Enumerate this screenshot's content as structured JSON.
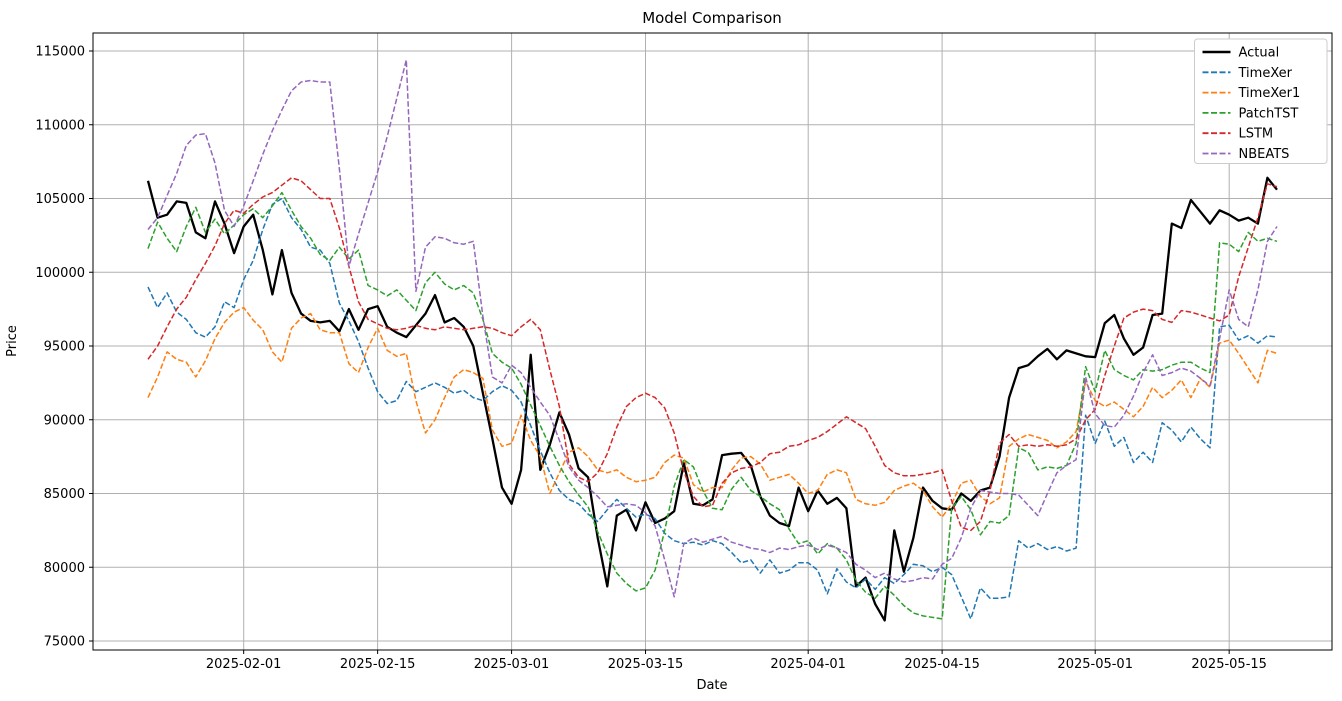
{
  "figure": {
    "title": "Model Comparison",
    "xlabel": "Date",
    "ylabel": "Price"
  },
  "chart_data": {
    "type": "line",
    "title": "Model Comparison",
    "xlabel": "Date",
    "ylabel": "Price",
    "grid": true,
    "legend_position": "upper right",
    "x_start_date": "2025-01-22",
    "x_step": "1 day",
    "x_end_date": "2025-05-20",
    "n_points": 119,
    "ylim": [
      74363,
      116221
    ],
    "xlim_days": [
      -5.75,
      123.75
    ],
    "y_ticks": [
      75000,
      80000,
      85000,
      90000,
      95000,
      100000,
      105000,
      110000,
      115000
    ],
    "x_ticks": [
      {
        "day": 10,
        "label": "2025-02-01"
      },
      {
        "day": 24,
        "label": "2025-02-15"
      },
      {
        "day": 38,
        "label": "2025-03-01"
      },
      {
        "day": 52,
        "label": "2025-03-15"
      },
      {
        "day": 69,
        "label": "2025-04-01"
      },
      {
        "day": 83,
        "label": "2025-04-15"
      },
      {
        "day": 99,
        "label": "2025-05-01"
      },
      {
        "day": 113,
        "label": "2025-05-15"
      }
    ],
    "series": [
      {
        "name": "Actual",
        "color": "#000000",
        "style": "solid",
        "width": 2.3,
        "values": [
          106200,
          103700,
          103900,
          104800,
          104700,
          102700,
          102300,
          104800,
          103300,
          101300,
          103100,
          103900,
          101500,
          98500,
          101500,
          98600,
          97200,
          96700,
          96600,
          96700,
          96000,
          97500,
          96100,
          97500,
          97700,
          96300,
          95900,
          95600,
          96400,
          97200,
          98450,
          96600,
          96900,
          96300,
          95000,
          91800,
          88700,
          85400,
          84300,
          86600,
          94400,
          86600,
          88300,
          90500,
          89000,
          86700,
          86100,
          82000,
          78700,
          83500,
          83900,
          82500,
          84400,
          83000,
          83300,
          83800,
          87050,
          84300,
          84200,
          84600,
          87600,
          87700,
          87750,
          86900,
          84800,
          83500,
          83000,
          82800,
          85400,
          83800,
          85200,
          84300,
          84700,
          84000,
          78700,
          79300,
          77500,
          76400,
          82500,
          79700,
          82000,
          85400,
          84500,
          84000,
          83900,
          85000,
          84500,
          85200,
          85400,
          87500,
          91500,
          93500,
          93700,
          94300,
          94800,
          94100,
          94700,
          94500,
          94300,
          94250,
          96550,
          97100,
          95500,
          94400,
          94900,
          97100,
          97200,
          103300,
          103000,
          104900,
          104100,
          103300,
          104200,
          103900,
          103500,
          103700,
          103300,
          106400,
          105600
        ]
      },
      {
        "name": "TimeXer",
        "color": "#1f77b4",
        "style": "dashed",
        "width": 1.5,
        "values": [
          99000,
          97600,
          98600,
          97300,
          96800,
          95900,
          95600,
          96300,
          98000,
          97600,
          99500,
          100800,
          102900,
          104600,
          105000,
          103700,
          102900,
          101700,
          101500,
          100600,
          97900,
          96700,
          95300,
          93500,
          91900,
          91100,
          91300,
          92600,
          91900,
          92200,
          92500,
          92200,
          91800,
          92000,
          91500,
          91300,
          91900,
          92300,
          92000,
          91200,
          89600,
          87900,
          86400,
          85200,
          84600,
          84300,
          83600,
          83100,
          83900,
          84600,
          84000,
          83400,
          83600,
          83300,
          82300,
          81800,
          81600,
          81700,
          81500,
          81800,
          81600,
          81000,
          80300,
          80500,
          79600,
          80500,
          79600,
          79800,
          80300,
          80300,
          79800,
          78200,
          79900,
          79000,
          78600,
          79200,
          78500,
          79300,
          78900,
          79500,
          80200,
          80100,
          79700,
          80000,
          79500,
          78000,
          76500,
          78600,
          77900,
          77900,
          78000,
          81800,
          81300,
          81600,
          81200,
          81400,
          81100,
          81300,
          90300,
          88400,
          89900,
          88200,
          88800,
          87100,
          87800,
          87100,
          89800,
          89300,
          88500,
          89500,
          88700,
          88100,
          96300,
          96400,
          95400,
          95700,
          95200,
          95700,
          95600
        ]
      },
      {
        "name": "TimeXer1",
        "color": "#ff7f0e",
        "style": "dashed",
        "width": 1.5,
        "values": [
          91500,
          92900,
          94600,
          94100,
          93900,
          92900,
          94000,
          95500,
          96600,
          97300,
          97600,
          96750,
          96100,
          94600,
          93900,
          96200,
          96900,
          97200,
          96100,
          95900,
          95900,
          93800,
          93200,
          94900,
          96200,
          94700,
          94300,
          94500,
          91300,
          89100,
          90000,
          91500,
          92900,
          93400,
          93200,
          92800,
          89300,
          88200,
          88400,
          90300,
          88600,
          87500,
          85000,
          86400,
          87800,
          88100,
          87500,
          86600,
          86400,
          86600,
          86100,
          85800,
          85900,
          86100,
          87100,
          87600,
          87400,
          85600,
          85100,
          85400,
          85400,
          86600,
          87400,
          87500,
          87000,
          85900,
          86100,
          86300,
          85700,
          85000,
          85200,
          86300,
          86600,
          86400,
          84600,
          84300,
          84200,
          84400,
          85200,
          85500,
          85700,
          85200,
          84100,
          83400,
          84300,
          85700,
          85900,
          84800,
          84300,
          84700,
          88200,
          88700,
          89000,
          88800,
          88600,
          88100,
          88500,
          89200,
          92600,
          91300,
          90900,
          91200,
          90700,
          90200,
          90900,
          92200,
          91500,
          92000,
          92700,
          91500,
          92800,
          92200,
          95200,
          95400,
          94500,
          93500,
          92500,
          94700,
          94500
        ]
      },
      {
        "name": "PatchTST",
        "color": "#2ca02c",
        "style": "dashed",
        "width": 1.5,
        "values": [
          101600,
          103400,
          102300,
          101400,
          103100,
          104400,
          102700,
          103600,
          102600,
          103200,
          103900,
          104300,
          103700,
          104500,
          105400,
          104200,
          103100,
          102300,
          101200,
          100800,
          101700,
          100900,
          101500,
          99100,
          98800,
          98400,
          98800,
          98100,
          97400,
          99300,
          100000,
          99200,
          98800,
          99100,
          98600,
          96800,
          94500,
          93900,
          93500,
          92400,
          91000,
          89600,
          88200,
          86900,
          85800,
          84900,
          84100,
          82400,
          80900,
          79600,
          78900,
          78400,
          78600,
          79800,
          82500,
          85500,
          87300,
          86800,
          85200,
          84000,
          83900,
          85300,
          86100,
          85200,
          84800,
          84300,
          83900,
          82600,
          81600,
          81800,
          80900,
          81600,
          81300,
          80500,
          79100,
          78300,
          77900,
          78700,
          78100,
          77400,
          76900,
          76700,
          76600,
          76500,
          84000,
          84800,
          83900,
          82200,
          83100,
          83000,
          83500,
          88100,
          87800,
          86600,
          86800,
          86700,
          86900,
          88400,
          93600,
          91900,
          94700,
          93400,
          93000,
          92700,
          93400,
          93300,
          93400,
          93700,
          93900,
          93900,
          93500,
          93200,
          102000,
          101900,
          101400,
          102700,
          102100,
          102300,
          102100
        ]
      },
      {
        "name": "LSTM",
        "color": "#d62728",
        "style": "dashed",
        "width": 1.5,
        "values": [
          94100,
          95000,
          96300,
          97500,
          98300,
          99500,
          100600,
          101800,
          103300,
          104200,
          104000,
          104600,
          105100,
          105400,
          105900,
          106400,
          106200,
          105600,
          105000,
          105000,
          103000,
          100400,
          98000,
          96800,
          96500,
          96200,
          96100,
          96200,
          96400,
          96200,
          96100,
          96300,
          96200,
          96100,
          96200,
          96300,
          96200,
          95900,
          95700,
          96300,
          96800,
          96100,
          93400,
          90900,
          87000,
          86100,
          85800,
          86400,
          87700,
          89500,
          90900,
          91500,
          91800,
          91500,
          90800,
          89100,
          86500,
          84800,
          84100,
          84200,
          85700,
          86400,
          86700,
          86800,
          87100,
          87700,
          87800,
          88200,
          88300,
          88600,
          88800,
          89200,
          89700,
          90200,
          89800,
          89400,
          88200,
          86900,
          86400,
          86200,
          86200,
          86300,
          86400,
          86600,
          84500,
          82700,
          82500,
          83100,
          85200,
          88400,
          89000,
          88200,
          88300,
          88200,
          88300,
          88200,
          88300,
          88700,
          90000,
          90700,
          93000,
          95000,
          96900,
          97300,
          97500,
          97400,
          96800,
          96600,
          97400,
          97300,
          97100,
          96900,
          96700,
          97100,
          99700,
          101700,
          103700,
          106000,
          105800
        ]
      },
      {
        "name": "NBEATS",
        "color": "#9467bd",
        "style": "dashed",
        "width": 1.5,
        "values": [
          102900,
          103700,
          105200,
          106700,
          108600,
          109300,
          109400,
          107400,
          104200,
          103100,
          104500,
          106200,
          108000,
          109600,
          111000,
          112300,
          112900,
          113000,
          112900,
          112900,
          107000,
          100400,
          102600,
          104700,
          106800,
          109200,
          111800,
          114400,
          98700,
          101700,
          102400,
          102300,
          102000,
          101900,
          102100,
          97000,
          92900,
          92500,
          93700,
          93200,
          92200,
          91200,
          90300,
          88600,
          86800,
          85900,
          85400,
          84800,
          84100,
          84200,
          84300,
          84200,
          83700,
          82800,
          80500,
          78000,
          81600,
          82000,
          81700,
          81900,
          82100,
          81700,
          81500,
          81300,
          81200,
          81000,
          81300,
          81200,
          81400,
          81500,
          81200,
          81500,
          81300,
          81000,
          80200,
          79800,
          79300,
          79600,
          79200,
          79000,
          79100,
          79300,
          79200,
          80200,
          80600,
          82000,
          84000,
          85200,
          85100,
          85000,
          85000,
          84900,
          84200,
          83500,
          85000,
          86400,
          86900,
          87300,
          92900,
          90400,
          89600,
          89500,
          90300,
          91600,
          93200,
          94400,
          93000,
          93200,
          93500,
          93300,
          92800,
          92300,
          95500,
          98800,
          96800,
          96300,
          98800,
          102100,
          103100
        ]
      }
    ]
  }
}
